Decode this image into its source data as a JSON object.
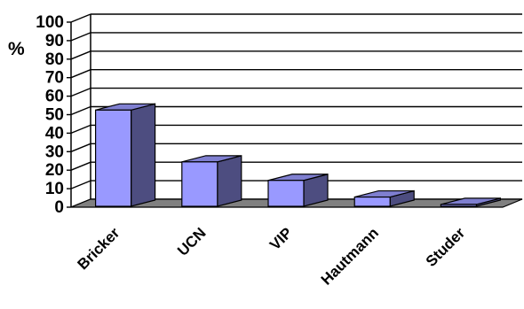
{
  "chart_data": {
    "type": "bar",
    "title": "",
    "xlabel": "",
    "ylabel": "%",
    "categories": [
      "Bricker",
      "UCN",
      "VIP",
      "Hautmann",
      "Studer"
    ],
    "values": [
      52,
      24,
      14,
      5,
      1
    ],
    "ylim": [
      0,
      100
    ],
    "yticks": [
      0,
      10,
      20,
      30,
      40,
      50,
      60,
      70,
      80,
      90,
      100
    ],
    "grid": true,
    "legend": "none",
    "three_d": true,
    "colors": {
      "bar_front": "#9999ff",
      "bar_side": "#4d4d80",
      "bar_top": "#7f7fd0",
      "floor": "#808080",
      "gridline": "#000000"
    }
  }
}
